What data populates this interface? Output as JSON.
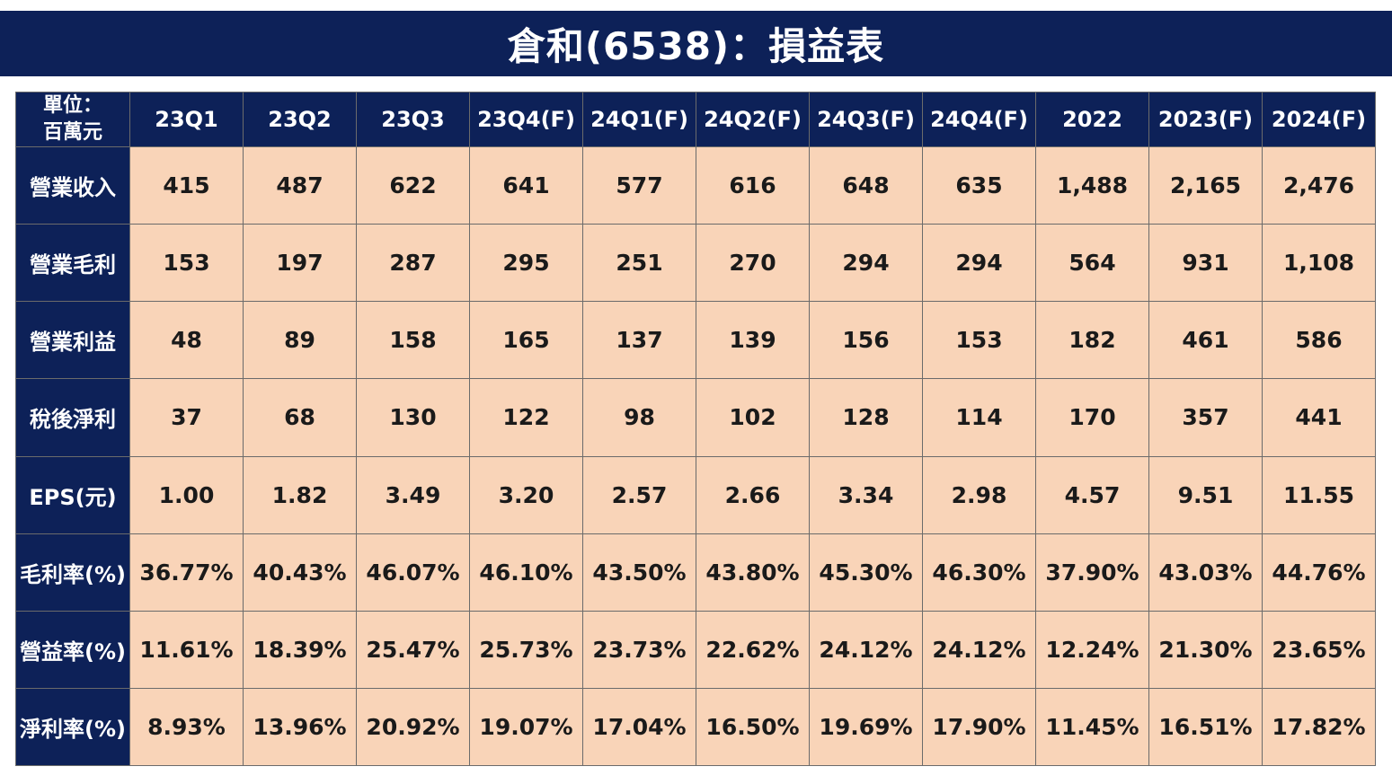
{
  "title": "倉和(6538)：損益表",
  "corner_line1": "單位：",
  "corner_line2": "百萬元",
  "columns": [
    "23Q1",
    "23Q2",
    "23Q3",
    "23Q4(F)",
    "24Q1(F)",
    "24Q2(F)",
    "24Q3(F)",
    "24Q4(F)",
    "2022",
    "2023(F)",
    "2024(F)"
  ],
  "rows": [
    {
      "label": "營業收入",
      "values": [
        "415",
        "487",
        "622",
        "641",
        "577",
        "616",
        "648",
        "635",
        "1,488",
        "2,165",
        "2,476"
      ]
    },
    {
      "label": "營業毛利",
      "values": [
        "153",
        "197",
        "287",
        "295",
        "251",
        "270",
        "294",
        "294",
        "564",
        "931",
        "1,108"
      ]
    },
    {
      "label": "營業利益",
      "values": [
        "48",
        "89",
        "158",
        "165",
        "137",
        "139",
        "156",
        "153",
        "182",
        "461",
        "586"
      ]
    },
    {
      "label": "稅後淨利",
      "values": [
        "37",
        "68",
        "130",
        "122",
        "98",
        "102",
        "128",
        "114",
        "170",
        "357",
        "441"
      ]
    },
    {
      "label": "EPS(元)",
      "values": [
        "1.00",
        "1.82",
        "3.49",
        "3.20",
        "2.57",
        "2.66",
        "3.34",
        "2.98",
        "4.57",
        "9.51",
        "11.55"
      ]
    },
    {
      "label": "毛利率(%)",
      "values": [
        "36.77%",
        "40.43%",
        "46.07%",
        "46.10%",
        "43.50%",
        "43.80%",
        "45.30%",
        "46.30%",
        "37.90%",
        "43.03%",
        "44.76%"
      ]
    },
    {
      "label": "營益率(%)",
      "values": [
        "11.61%",
        "18.39%",
        "25.47%",
        "25.73%",
        "23.73%",
        "22.62%",
        "24.12%",
        "24.12%",
        "12.24%",
        "21.30%",
        "23.65%"
      ]
    },
    {
      "label": "淨利率(%)",
      "values": [
        "8.93%",
        "13.96%",
        "20.92%",
        "19.07%",
        "17.04%",
        "16.50%",
        "19.69%",
        "17.90%",
        "11.45%",
        "16.51%",
        "17.82%"
      ]
    }
  ],
  "colors": {
    "header_bg": "#0d2158",
    "cell_bg": "#f9d4b8",
    "header_text": "#ffffff"
  }
}
